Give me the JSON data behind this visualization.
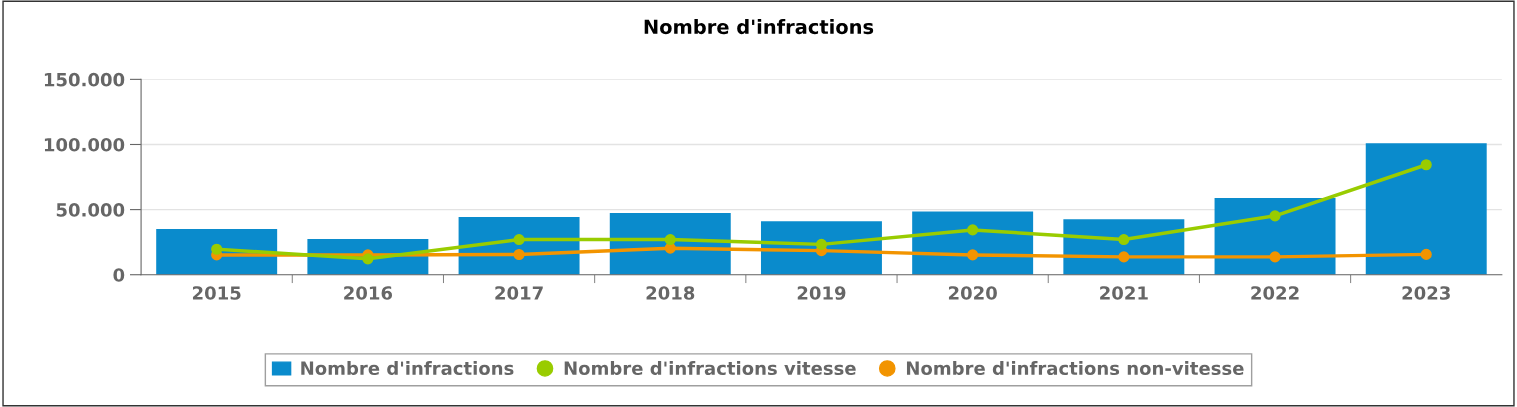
{
  "chart_data": {
    "type": "bar",
    "title": "Nombre d'infractions",
    "categories": [
      "2015",
      "2016",
      "2017",
      "2018",
      "2019",
      "2020",
      "2021",
      "2022",
      "2023"
    ],
    "series": [
      {
        "name": "Nombre d'infractions",
        "color": "#0a8bcc",
        "values": [
          35200,
          27400,
          44400,
          47400,
          41100,
          48500,
          42600,
          59000,
          101000
        ]
      },
      {
        "name": "Nombre d'infractions vitesse",
        "type": "line",
        "color": "#99cc00",
        "values": [
          19600,
          12200,
          27000,
          27000,
          23300,
          34400,
          27000,
          45200,
          84400
        ]
      },
      {
        "name": "Nombre d'infractions non-vitesse",
        "type": "line",
        "color": "#f29400",
        "values": [
          15200,
          15200,
          15500,
          20400,
          18500,
          15200,
          13700,
          13700,
          15600
        ]
      }
    ],
    "ylim": [
      0,
      150000
    ],
    "yticks": [
      0,
      {
        "value": 50000,
        "label": "50.000"
      },
      {
        "value": 100000,
        "label": "100.000"
      },
      {
        "value": 150000,
        "label": "150.000"
      }
    ],
    "grid": "y",
    "legend": "bottom",
    "marker": "circle"
  }
}
